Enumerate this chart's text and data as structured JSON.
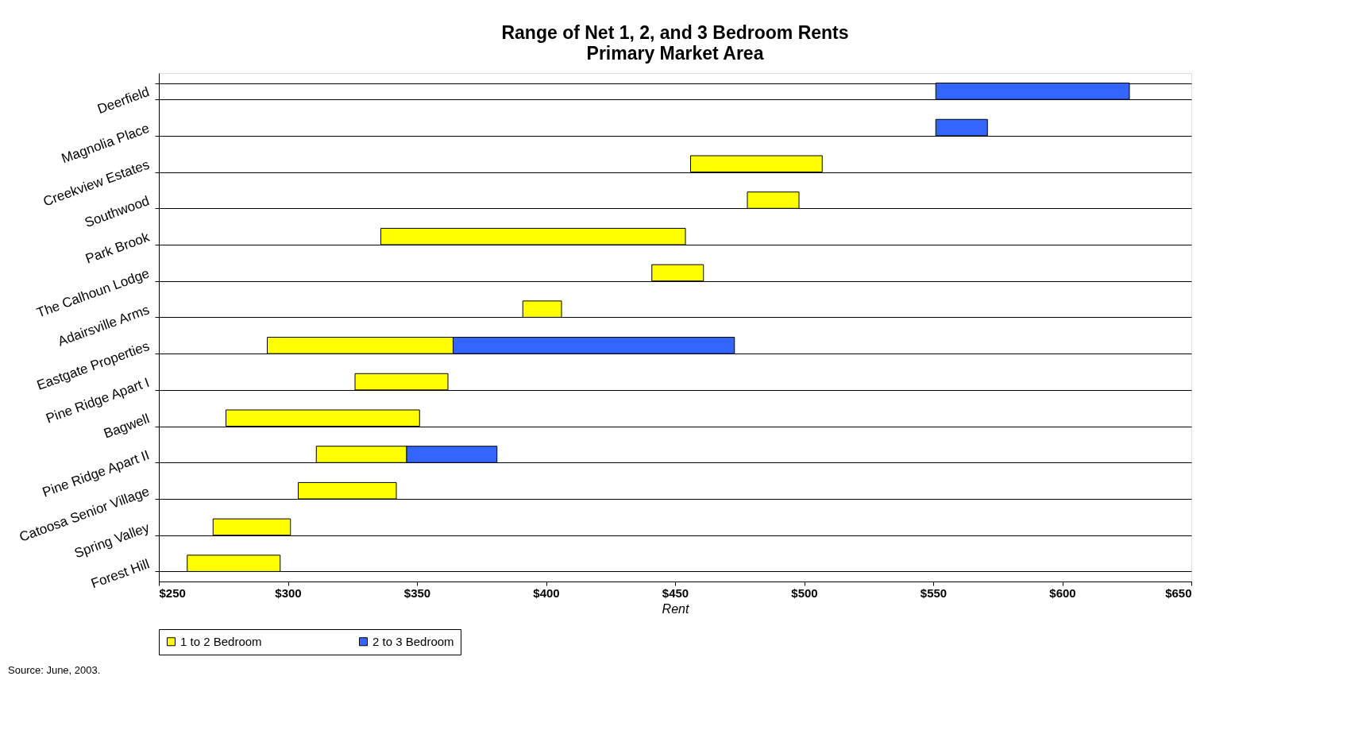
{
  "chart_data": {
    "type": "bar",
    "orientation": "horizontal",
    "title": "Range of Net 1, 2, and 3 Bedroom Rents",
    "subtitle": "Primary Market Area",
    "xlabel": "Rent",
    "categories": [
      "Deerfield",
      "Magnolia Place",
      "Creekview Estates",
      "Southwood",
      "Park Brook",
      "The Calhoun Lodge",
      "Adairsville Arms",
      "Eastgate Properties",
      "Pine Ridge Apart I",
      "Bagwell",
      "Pine Ridge Apart II",
      "Catoosa Senior Village",
      "Spring Valley",
      "Forest Hill"
    ],
    "series": [
      {
        "name": "1 to 2 Bedroom",
        "color": "#ffff00",
        "base": [
          null,
          null,
          456,
          478,
          336,
          441,
          391,
          292,
          326,
          276,
          311,
          304,
          271,
          261
        ],
        "values": [
          null,
          null,
          51,
          20,
          118,
          20,
          15,
          72,
          36,
          75,
          35,
          38,
          30,
          36
        ]
      },
      {
        "name": "2 to 3 Bedroom",
        "color": "#3366ff",
        "base": [
          551,
          551,
          null,
          null,
          null,
          null,
          null,
          364,
          null,
          null,
          346,
          null,
          null,
          null
        ],
        "values": [
          75,
          20,
          null,
          null,
          null,
          null,
          null,
          109,
          null,
          null,
          35,
          null,
          null,
          null
        ]
      }
    ],
    "xlim": [
      250,
      650
    ],
    "xticks": [
      {
        "value": 250,
        "label": "$250"
      },
      {
        "value": 300,
        "label": "$300"
      },
      {
        "value": 350,
        "label": "$350"
      },
      {
        "value": 400,
        "label": "$400"
      },
      {
        "value": 450,
        "label": "$450"
      },
      {
        "value": 500,
        "label": "$500"
      },
      {
        "value": 550,
        "label": "$550"
      },
      {
        "value": 600,
        "label": "$600"
      },
      {
        "value": 650,
        "label": "$650"
      }
    ],
    "grid": "y",
    "legend": "bottom",
    "annotations": [
      "Source:   June, 2003."
    ]
  }
}
